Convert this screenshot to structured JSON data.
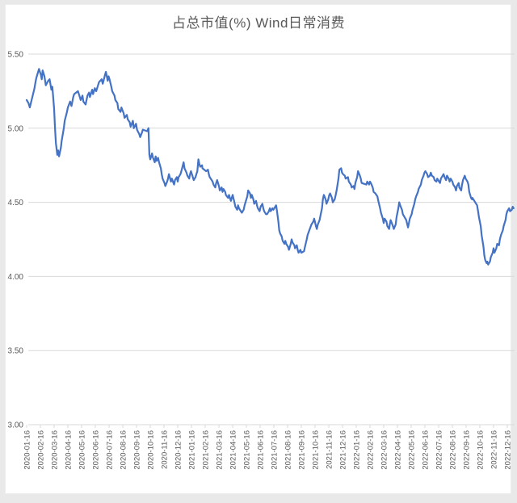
{
  "page": {
    "background_color": "#e9e9e9",
    "panel_color": "#ffffff"
  },
  "chart_data": {
    "type": "line",
    "title": "占总市值(%) Wind日常消费",
    "series_name": "占总市值(%) Wind日常消费",
    "xlabel": "",
    "ylabel": "",
    "ylim": [
      3.0,
      5.5
    ],
    "grid": "horizontal",
    "legend": "none",
    "line_color": "#4472C4",
    "gridline_color": "#D9D9D9",
    "axis_text_color": "#595959",
    "title_color": "#595959",
    "y_tick_labels": [
      "5.50",
      "5.00",
      "4.50",
      "4.00",
      "3.50",
      "3.00"
    ],
    "x_tick_labels": [
      "2020-01-16",
      "2020-02-16",
      "2020-03-16",
      "2020-04-16",
      "2020-05-16",
      "2020-06-16",
      "2020-07-16",
      "2020-08-16",
      "2020-09-16",
      "2020-10-16",
      "2020-11-16",
      "2020-12-16",
      "2021-01-16",
      "2021-02-16",
      "2021-03-16",
      "2021-04-16",
      "2021-05-16",
      "2021-06-16",
      "2021-07-16",
      "2021-08-16",
      "2021-09-16",
      "2021-10-16",
      "2021-11-16",
      "2021-12-16",
      "2022-01-16",
      "2022-02-16",
      "2022-03-16",
      "2022-04-16",
      "2022-05-16",
      "2022-06-16",
      "2022-07-16",
      "2022-08-16",
      "2022-09-16",
      "2022-10-16",
      "2022-11-16",
      "2022-12-16"
    ],
    "points": [
      [
        "2020-01-16",
        5.19
      ],
      [
        "2020-01-20",
        5.17
      ],
      [
        "2020-01-23",
        5.14
      ],
      [
        "2020-02-03",
        5.27
      ],
      [
        "2020-02-05",
        5.31
      ],
      [
        "2020-02-07",
        5.34
      ],
      [
        "2020-02-11",
        5.38
      ],
      [
        "2020-02-13",
        5.4
      ],
      [
        "2020-02-17",
        5.36
      ],
      [
        "2020-02-19",
        5.33
      ],
      [
        "2020-02-21",
        5.39
      ],
      [
        "2020-02-25",
        5.35
      ],
      [
        "2020-02-28",
        5.29
      ],
      [
        "2020-03-03",
        5.32
      ],
      [
        "2020-03-06",
        5.33
      ],
      [
        "2020-03-10",
        5.26
      ],
      [
        "2020-03-12",
        5.28
      ],
      [
        "2020-03-16",
        5.13
      ],
      [
        "2020-03-18",
        5.0
      ],
      [
        "2020-03-20",
        4.9
      ],
      [
        "2020-03-23",
        4.82
      ],
      [
        "2020-03-25",
        4.85
      ],
      [
        "2020-03-27",
        4.81
      ],
      [
        "2020-03-31",
        4.87
      ],
      [
        "2020-04-02",
        4.91
      ],
      [
        "2020-04-07",
        5.0
      ],
      [
        "2020-04-09",
        5.05
      ],
      [
        "2020-04-14",
        5.11
      ],
      [
        "2020-04-16",
        5.14
      ],
      [
        "2020-04-21",
        5.18
      ],
      [
        "2020-04-24",
        5.15
      ],
      [
        "2020-04-28",
        5.21
      ],
      [
        "2020-04-30",
        5.23
      ],
      [
        "2020-05-08",
        5.25
      ],
      [
        "2020-05-12",
        5.21
      ],
      [
        "2020-05-14",
        5.19
      ],
      [
        "2020-05-18",
        5.22
      ],
      [
        "2020-05-20",
        5.18
      ],
      [
        "2020-05-25",
        5.16
      ],
      [
        "2020-05-27",
        5.19
      ],
      [
        "2020-05-29",
        5.22
      ],
      [
        "2020-06-02",
        5.24
      ],
      [
        "2020-06-04",
        5.21
      ],
      [
        "2020-06-09",
        5.26
      ],
      [
        "2020-06-11",
        5.23
      ],
      [
        "2020-06-15",
        5.27
      ],
      [
        "2020-06-18",
        5.25
      ],
      [
        "2020-06-22",
        5.29
      ],
      [
        "2020-06-24",
        5.31
      ],
      [
        "2020-06-30",
        5.33
      ],
      [
        "2020-07-02",
        5.3
      ],
      [
        "2020-07-07",
        5.36
      ],
      [
        "2020-07-09",
        5.38
      ],
      [
        "2020-07-13",
        5.32
      ],
      [
        "2020-07-15",
        5.35
      ],
      [
        "2020-07-17",
        5.33
      ],
      [
        "2020-07-21",
        5.28
      ],
      [
        "2020-07-23",
        5.25
      ],
      [
        "2020-07-28",
        5.22
      ],
      [
        "2020-07-30",
        5.19
      ],
      [
        "2020-08-04",
        5.17
      ],
      [
        "2020-08-06",
        5.13
      ],
      [
        "2020-08-11",
        5.11
      ],
      [
        "2020-08-13",
        5.14
      ],
      [
        "2020-08-18",
        5.1
      ],
      [
        "2020-08-20",
        5.07
      ],
      [
        "2020-08-25",
        5.09
      ],
      [
        "2020-08-27",
        5.06
      ],
      [
        "2020-09-01",
        5.04
      ],
      [
        "2020-09-03",
        5.01
      ],
      [
        "2020-09-08",
        5.05
      ],
      [
        "2020-09-10",
        5.0
      ],
      [
        "2020-09-15",
        5.03
      ],
      [
        "2020-09-17",
        4.99
      ],
      [
        "2020-09-22",
        4.96
      ],
      [
        "2020-09-24",
        4.94
      ],
      [
        "2020-09-28",
        4.97
      ],
      [
        "2020-09-30",
        4.99
      ],
      [
        "2020-10-09",
        4.98
      ],
      [
        "2020-10-12",
        5.0
      ],
      [
        "2020-10-14",
        4.82
      ],
      [
        "2020-10-16",
        4.79
      ],
      [
        "2020-10-20",
        4.83
      ],
      [
        "2020-10-22",
        4.8
      ],
      [
        "2020-10-26",
        4.77
      ],
      [
        "2020-10-28",
        4.81
      ],
      [
        "2020-10-30",
        4.78
      ],
      [
        "2020-11-03",
        4.8
      ],
      [
        "2020-11-05",
        4.77
      ],
      [
        "2020-11-09",
        4.73
      ],
      [
        "2020-11-11",
        4.69
      ],
      [
        "2020-11-13",
        4.66
      ],
      [
        "2020-11-17",
        4.63
      ],
      [
        "2020-11-19",
        4.61
      ],
      [
        "2020-11-23",
        4.64
      ],
      [
        "2020-11-25",
        4.66
      ],
      [
        "2020-11-27",
        4.69
      ],
      [
        "2020-12-01",
        4.64
      ],
      [
        "2020-12-03",
        4.66
      ],
      [
        "2020-12-08",
        4.62
      ],
      [
        "2020-12-10",
        4.65
      ],
      [
        "2020-12-14",
        4.67
      ],
      [
        "2020-12-16",
        4.64
      ],
      [
        "2020-12-18",
        4.67
      ],
      [
        "2020-12-22",
        4.69
      ],
      [
        "2020-12-24",
        4.71
      ],
      [
        "2020-12-29",
        4.77
      ],
      [
        "2020-12-31",
        4.73
      ],
      [
        "2021-01-05",
        4.7
      ],
      [
        "2021-01-07",
        4.68
      ],
      [
        "2021-01-11",
        4.66
      ],
      [
        "2021-01-13",
        4.69
      ],
      [
        "2021-01-15",
        4.71
      ],
      [
        "2021-01-19",
        4.67
      ],
      [
        "2021-01-21",
        4.65
      ],
      [
        "2021-01-25",
        4.67
      ],
      [
        "2021-01-27",
        4.69
      ],
      [
        "2021-01-29",
        4.71
      ],
      [
        "2021-02-01",
        4.79
      ],
      [
        "2021-02-03",
        4.76
      ],
      [
        "2021-02-05",
        4.74
      ],
      [
        "2021-02-09",
        4.75
      ],
      [
        "2021-02-10",
        4.73
      ],
      [
        "2021-02-18",
        4.71
      ],
      [
        "2021-02-22",
        4.72
      ],
      [
        "2021-02-24",
        4.69
      ],
      [
        "2021-02-26",
        4.67
      ],
      [
        "2021-03-02",
        4.64
      ],
      [
        "2021-03-04",
        4.62
      ],
      [
        "2021-03-08",
        4.6
      ],
      [
        "2021-03-10",
        4.63
      ],
      [
        "2021-03-12",
        4.65
      ],
      [
        "2021-03-16",
        4.61
      ],
      [
        "2021-03-18",
        4.58
      ],
      [
        "2021-03-22",
        4.6
      ],
      [
        "2021-03-24",
        4.57
      ],
      [
        "2021-03-26",
        4.59
      ],
      [
        "2021-03-30",
        4.57
      ],
      [
        "2021-04-01",
        4.55
      ],
      [
        "2021-04-06",
        4.53
      ],
      [
        "2021-04-08",
        4.55
      ],
      [
        "2021-04-12",
        4.51
      ],
      [
        "2021-04-14",
        4.53
      ],
      [
        "2021-04-16",
        4.55
      ],
      [
        "2021-04-20",
        4.5
      ],
      [
        "2021-04-22",
        4.47
      ],
      [
        "2021-04-26",
        4.45
      ],
      [
        "2021-04-28",
        4.48
      ],
      [
        "2021-04-30",
        4.46
      ],
      [
        "2021-05-06",
        4.43
      ],
      [
        "2021-05-10",
        4.45
      ],
      [
        "2021-05-12",
        4.48
      ],
      [
        "2021-05-14",
        4.5
      ],
      [
        "2021-05-18",
        4.54
      ],
      [
        "2021-05-20",
        4.58
      ],
      [
        "2021-05-24",
        4.56
      ],
      [
        "2021-05-26",
        4.53
      ],
      [
        "2021-05-28",
        4.55
      ],
      [
        "2021-06-01",
        4.52
      ],
      [
        "2021-06-03",
        4.49
      ],
      [
        "2021-06-07",
        4.51
      ],
      [
        "2021-06-09",
        4.48
      ],
      [
        "2021-06-11",
        4.46
      ],
      [
        "2021-06-15",
        4.44
      ],
      [
        "2021-06-17",
        4.47
      ],
      [
        "2021-06-21",
        4.49
      ],
      [
        "2021-06-23",
        4.46
      ],
      [
        "2021-06-25",
        4.44
      ],
      [
        "2021-06-29",
        4.42
      ],
      [
        "2021-07-01",
        4.42
      ],
      [
        "2021-07-05",
        4.44
      ],
      [
        "2021-07-07",
        4.46
      ],
      [
        "2021-07-09",
        4.44
      ],
      [
        "2021-07-13",
        4.46
      ],
      [
        "2021-07-15",
        4.45
      ],
      [
        "2021-07-19",
        4.47
      ],
      [
        "2021-07-21",
        4.48
      ],
      [
        "2021-07-23",
        4.44
      ],
      [
        "2021-07-26",
        4.37
      ],
      [
        "2021-07-28",
        4.31
      ],
      [
        "2021-07-30",
        4.29
      ],
      [
        "2021-08-03",
        4.27
      ],
      [
        "2021-08-05",
        4.24
      ],
      [
        "2021-08-09",
        4.22
      ],
      [
        "2021-08-11",
        4.24
      ],
      [
        "2021-08-13",
        4.22
      ],
      [
        "2021-08-17",
        4.2
      ],
      [
        "2021-08-19",
        4.18
      ],
      [
        "2021-08-23",
        4.22
      ],
      [
        "2021-08-25",
        4.25
      ],
      [
        "2021-08-27",
        4.23
      ],
      [
        "2021-08-31",
        4.21
      ],
      [
        "2021-09-02",
        4.19
      ],
      [
        "2021-09-06",
        4.21
      ],
      [
        "2021-09-08",
        4.18
      ],
      [
        "2021-09-10",
        4.16
      ],
      [
        "2021-09-14",
        4.18
      ],
      [
        "2021-09-16",
        4.16
      ],
      [
        "2021-09-22",
        4.17
      ],
      [
        "2021-09-24",
        4.2
      ],
      [
        "2021-09-28",
        4.25
      ],
      [
        "2021-09-30",
        4.28
      ],
      [
        "2021-10-08",
        4.35
      ],
      [
        "2021-10-12",
        4.37
      ],
      [
        "2021-10-14",
        4.39
      ],
      [
        "2021-10-18",
        4.34
      ],
      [
        "2021-10-20",
        4.32
      ],
      [
        "2021-10-22",
        4.35
      ],
      [
        "2021-10-26",
        4.38
      ],
      [
        "2021-10-28",
        4.41
      ],
      [
        "2021-11-01",
        4.46
      ],
      [
        "2021-11-03",
        4.52
      ],
      [
        "2021-11-05",
        4.55
      ],
      [
        "2021-11-09",
        4.52
      ],
      [
        "2021-11-11",
        4.49
      ],
      [
        "2021-11-15",
        4.52
      ],
      [
        "2021-11-17",
        4.55
      ],
      [
        "2021-11-19",
        4.56
      ],
      [
        "2021-11-23",
        4.53
      ],
      [
        "2021-11-25",
        4.5
      ],
      [
        "2021-11-29",
        4.52
      ],
      [
        "2021-12-01",
        4.55
      ],
      [
        "2021-12-03",
        4.58
      ],
      [
        "2021-12-07",
        4.66
      ],
      [
        "2021-12-09",
        4.72
      ],
      [
        "2021-12-13",
        4.73
      ],
      [
        "2021-12-15",
        4.7
      ],
      [
        "2021-12-17",
        4.69
      ],
      [
        "2021-12-21",
        4.68
      ],
      [
        "2021-12-23",
        4.66
      ],
      [
        "2021-12-28",
        4.67
      ],
      [
        "2021-12-30",
        4.64
      ],
      [
        "2022-01-04",
        4.62
      ],
      [
        "2022-01-06",
        4.6
      ],
      [
        "2022-01-10",
        4.61
      ],
      [
        "2022-01-12",
        4.59
      ],
      [
        "2022-01-14",
        4.63
      ],
      [
        "2022-01-18",
        4.67
      ],
      [
        "2022-01-20",
        4.71
      ],
      [
        "2022-01-24",
        4.68
      ],
      [
        "2022-01-26",
        4.66
      ],
      [
        "2022-01-28",
        4.63
      ],
      [
        "2022-02-08",
        4.62
      ],
      [
        "2022-02-10",
        4.64
      ],
      [
        "2022-02-14",
        4.62
      ],
      [
        "2022-02-16",
        4.64
      ],
      [
        "2022-02-18",
        4.63
      ],
      [
        "2022-02-22",
        4.6
      ],
      [
        "2022-02-24",
        4.57
      ],
      [
        "2022-02-28",
        4.56
      ],
      [
        "2022-03-02",
        4.54
      ],
      [
        "2022-03-04",
        4.51
      ],
      [
        "2022-03-08",
        4.46
      ],
      [
        "2022-03-10",
        4.43
      ],
      [
        "2022-03-14",
        4.39
      ],
      [
        "2022-03-16",
        4.36
      ],
      [
        "2022-03-18",
        4.39
      ],
      [
        "2022-03-22",
        4.37
      ],
      [
        "2022-03-24",
        4.34
      ],
      [
        "2022-03-28",
        4.32
      ],
      [
        "2022-03-30",
        4.36
      ],
      [
        "2022-04-01",
        4.38
      ],
      [
        "2022-04-06",
        4.34
      ],
      [
        "2022-04-08",
        4.32
      ],
      [
        "2022-04-12",
        4.35
      ],
      [
        "2022-04-14",
        4.4
      ],
      [
        "2022-04-18",
        4.46
      ],
      [
        "2022-04-20",
        4.5
      ],
      [
        "2022-04-22",
        4.48
      ],
      [
        "2022-04-26",
        4.45
      ],
      [
        "2022-04-28",
        4.42
      ],
      [
        "2022-05-05",
        4.38
      ],
      [
        "2022-05-09",
        4.33
      ],
      [
        "2022-05-11",
        4.36
      ],
      [
        "2022-05-13",
        4.39
      ],
      [
        "2022-05-17",
        4.42
      ],
      [
        "2022-05-19",
        4.45
      ],
      [
        "2022-05-23",
        4.49
      ],
      [
        "2022-05-25",
        4.52
      ],
      [
        "2022-05-27",
        4.54
      ],
      [
        "2022-05-31",
        4.57
      ],
      [
        "2022-06-02",
        4.59
      ],
      [
        "2022-06-07",
        4.62
      ],
      [
        "2022-06-09",
        4.65
      ],
      [
        "2022-06-13",
        4.68
      ],
      [
        "2022-06-15",
        4.7
      ],
      [
        "2022-06-17",
        4.71
      ],
      [
        "2022-06-21",
        4.69
      ],
      [
        "2022-06-23",
        4.67
      ],
      [
        "2022-06-27",
        4.68
      ],
      [
        "2022-06-29",
        4.7
      ],
      [
        "2022-07-01",
        4.68
      ],
      [
        "2022-07-05",
        4.67
      ],
      [
        "2022-07-07",
        4.65
      ],
      [
        "2022-07-11",
        4.64
      ],
      [
        "2022-07-13",
        4.66
      ],
      [
        "2022-07-15",
        4.65
      ],
      [
        "2022-07-19",
        4.63
      ],
      [
        "2022-07-21",
        4.66
      ],
      [
        "2022-07-25",
        4.68
      ],
      [
        "2022-07-27",
        4.69
      ],
      [
        "2022-07-29",
        4.67
      ],
      [
        "2022-08-02",
        4.65
      ],
      [
        "2022-08-04",
        4.68
      ],
      [
        "2022-08-08",
        4.66
      ],
      [
        "2022-08-10",
        4.64
      ],
      [
        "2022-08-12",
        4.66
      ],
      [
        "2022-08-16",
        4.64
      ],
      [
        "2022-08-18",
        4.62
      ],
      [
        "2022-08-22",
        4.6
      ],
      [
        "2022-08-24",
        4.58
      ],
      [
        "2022-08-26",
        4.61
      ],
      [
        "2022-08-30",
        4.63
      ],
      [
        "2022-09-01",
        4.6
      ],
      [
        "2022-09-05",
        4.58
      ],
      [
        "2022-09-07",
        4.62
      ],
      [
        "2022-09-09",
        4.65
      ],
      [
        "2022-09-13",
        4.68
      ],
      [
        "2022-09-15",
        4.66
      ],
      [
        "2022-09-19",
        4.64
      ],
      [
        "2022-09-21",
        4.62
      ],
      [
        "2022-09-23",
        4.57
      ],
      [
        "2022-09-27",
        4.53
      ],
      [
        "2022-09-29",
        4.52
      ],
      [
        "2022-09-30",
        4.53
      ],
      [
        "2022-10-10",
        4.48
      ],
      [
        "2022-10-12",
        4.44
      ],
      [
        "2022-10-14",
        4.4
      ],
      [
        "2022-10-18",
        4.34
      ],
      [
        "2022-10-20",
        4.28
      ],
      [
        "2022-10-24",
        4.2
      ],
      [
        "2022-10-26",
        4.14
      ],
      [
        "2022-10-28",
        4.11
      ],
      [
        "2022-10-31",
        4.09
      ],
      [
        "2022-11-02",
        4.1
      ],
      [
        "2022-11-04",
        4.08
      ],
      [
        "2022-11-08",
        4.1
      ],
      [
        "2022-11-10",
        4.13
      ],
      [
        "2022-11-14",
        4.16
      ],
      [
        "2022-11-16",
        4.19
      ],
      [
        "2022-11-18",
        4.16
      ],
      [
        "2022-11-22",
        4.19
      ],
      [
        "2022-11-24",
        4.22
      ],
      [
        "2022-11-28",
        4.21
      ],
      [
        "2022-11-30",
        4.25
      ],
      [
        "2022-12-02",
        4.28
      ],
      [
        "2022-12-06",
        4.31
      ],
      [
        "2022-12-08",
        4.34
      ],
      [
        "2022-12-12",
        4.38
      ],
      [
        "2022-12-14",
        4.42
      ],
      [
        "2022-12-16",
        4.44
      ],
      [
        "2022-12-20",
        4.46
      ],
      [
        "2022-12-22",
        4.44
      ],
      [
        "2022-12-26",
        4.45
      ],
      [
        "2022-12-28",
        4.47
      ],
      [
        "2022-12-30",
        4.46
      ]
    ]
  }
}
